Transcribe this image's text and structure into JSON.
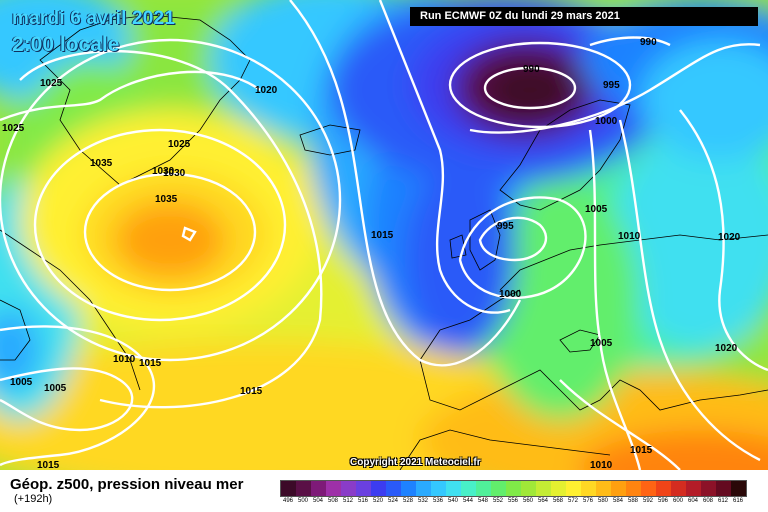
{
  "title": {
    "date": "mardi 6 avril 2021",
    "time": "2:00 locale"
  },
  "run_label": "Run ECMWF 0Z du lundi 29 mars 2021",
  "copyright": "Copyright 2021 Meteociel.fr",
  "legend": {
    "title": "Géop. z500, pression niveau mer",
    "subtitle": "(+192h)",
    "scale_values": [
      "496",
      "500",
      "504",
      "508",
      "512",
      "516",
      "520",
      "524",
      "528",
      "532",
      "536",
      "540",
      "544",
      "548",
      "552",
      "556",
      "560",
      "564",
      "568",
      "572",
      "576",
      "580",
      "584",
      "588",
      "592",
      "596",
      "600",
      "604",
      "608",
      "612",
      "616"
    ],
    "scale_colors": [
      "#3c0a28",
      "#5a1046",
      "#7e1a78",
      "#9e30a8",
      "#8a3cc8",
      "#6a40e0",
      "#3c3cf0",
      "#2a5af8",
      "#1e82ff",
      "#2aaaff",
      "#34c8ff",
      "#40e0f0",
      "#48f0c8",
      "#50f09a",
      "#62ee6c",
      "#80ea48",
      "#a0e838",
      "#c4ec34",
      "#e4f030",
      "#fff030",
      "#ffd824",
      "#ffbc18",
      "#ffa010",
      "#ff8410",
      "#ff6414",
      "#f04418",
      "#d42c20",
      "#b41c28",
      "#8c1228",
      "#640a20",
      "#2a0808"
    ]
  },
  "isobar_labels": [
    "990",
    "990",
    "995",
    "1000",
    "995",
    "1000",
    "1005",
    "1010",
    "1020",
    "1005",
    "1020",
    "1015",
    "1025",
    "1025",
    "1020",
    "1025",
    "1035",
    "1030",
    "1030",
    "1035",
    "1015",
    "1010",
    "1015",
    "1005",
    "1005",
    "1015",
    "1015",
    "1010"
  ],
  "colors": {
    "z500_low": "#3c0a28",
    "z500_high": "#ff8410",
    "isobar": "#ffffff",
    "coastline": "#000000"
  }
}
